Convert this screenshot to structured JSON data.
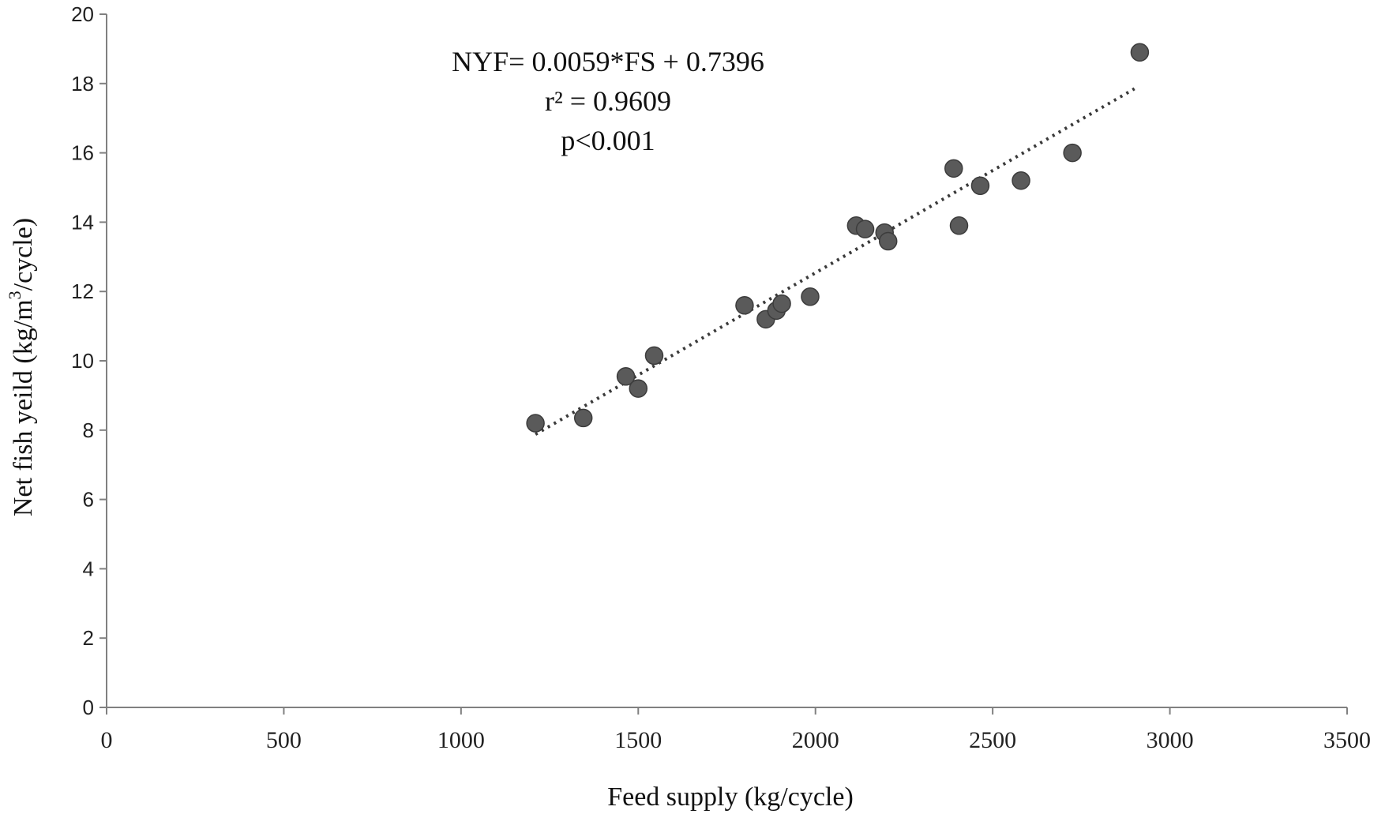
{
  "chart_data": {
    "type": "scatter",
    "xlabel": "Feed supply (kg/cycle)",
    "ylabel_parts": [
      "Net  fish yeild (kg/m",
      "3",
      "/cycle)"
    ],
    "xlim": [
      0,
      3500
    ],
    "ylim": [
      0,
      20
    ],
    "x_ticks": [
      0,
      500,
      1000,
      1500,
      2000,
      2500,
      3000,
      3500
    ],
    "y_ticks": [
      0,
      2,
      4,
      6,
      8,
      10,
      12,
      14,
      16,
      18,
      20
    ],
    "grid": false,
    "legend": "none",
    "annotations": [
      "NYF= 0.0059*FS + 0.7396",
      "r² = 0.9609",
      "p<0.001"
    ],
    "trendline": {
      "slope": 0.0059,
      "intercept": 0.7396,
      "x_range": [
        1210,
        2900
      ]
    },
    "points": [
      {
        "x": 1210,
        "y": 8.2
      },
      {
        "x": 1345,
        "y": 8.35
      },
      {
        "x": 1465,
        "y": 9.55
      },
      {
        "x": 1500,
        "y": 9.2
      },
      {
        "x": 1545,
        "y": 10.15
      },
      {
        "x": 1800,
        "y": 11.6
      },
      {
        "x": 1860,
        "y": 11.2
      },
      {
        "x": 1890,
        "y": 11.45
      },
      {
        "x": 1905,
        "y": 11.65
      },
      {
        "x": 1985,
        "y": 11.85
      },
      {
        "x": 2115,
        "y": 13.9
      },
      {
        "x": 2140,
        "y": 13.8
      },
      {
        "x": 2195,
        "y": 13.7
      },
      {
        "x": 2205,
        "y": 13.45
      },
      {
        "x": 2390,
        "y": 15.55
      },
      {
        "x": 2405,
        "y": 13.9
      },
      {
        "x": 2465,
        "y": 15.05
      },
      {
        "x": 2580,
        "y": 15.2
      },
      {
        "x": 2725,
        "y": 16.0
      },
      {
        "x": 2915,
        "y": 18.9
      }
    ]
  }
}
